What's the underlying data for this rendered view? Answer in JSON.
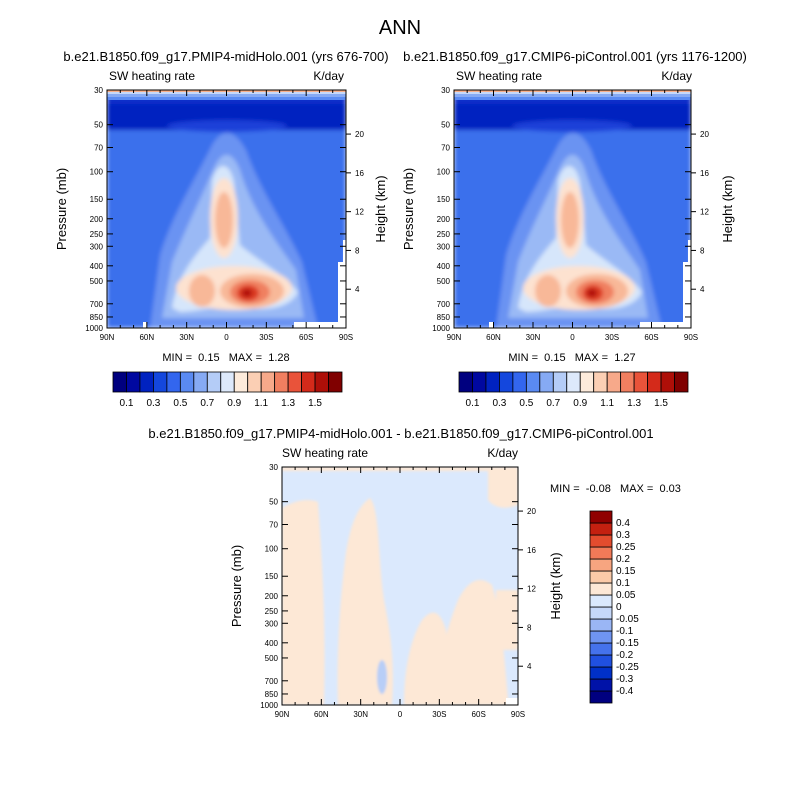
{
  "figure": {
    "title": "ANN"
  },
  "chart_data": [
    {
      "type": "heatmap",
      "title": "b.e21.B1850.f09_g17.PMIP4-midHolo.001 (yrs 676-700)",
      "left_label": "SW heating rate",
      "right_label": "K/day",
      "ylabel": "Pressure (mb)",
      "ylabel_right": "Height (km)",
      "xticks": [
        "90N",
        "60N",
        "30N",
        "0",
        "30S",
        "60S",
        "90S"
      ],
      "yticks": [
        30,
        50,
        70,
        100,
        150,
        200,
        250,
        300,
        400,
        500,
        700,
        850,
        1000
      ],
      "height_ticks": [
        20,
        16,
        12,
        8,
        4
      ],
      "ylim": [
        1000,
        30
      ],
      "y_log_scale": true,
      "stats": {
        "min_label": "MIN =",
        "min": "0.15",
        "max_label": "MAX =",
        "max": "1.28"
      }
    },
    {
      "type": "heatmap",
      "title": "b.e21.B1850.f09_g17.CMIP6-piControl.001 (yrs 1176-1200)",
      "left_label": "SW heating rate",
      "right_label": "K/day",
      "ylabel": "Pressure (mb)",
      "ylabel_right": "Height (km)",
      "xticks": [
        "90N",
        "60N",
        "30N",
        "0",
        "30S",
        "60S",
        "90S"
      ],
      "yticks": [
        30,
        50,
        70,
        100,
        150,
        200,
        250,
        300,
        400,
        500,
        700,
        850,
        1000
      ],
      "height_ticks": [
        20,
        16,
        12,
        8,
        4
      ],
      "ylim": [
        1000,
        30
      ],
      "y_log_scale": true,
      "stats": {
        "min_label": "MIN =",
        "min": "0.15",
        "max_label": "MAX =",
        "max": "1.27"
      }
    },
    {
      "type": "heatmap",
      "title": "b.e21.B1850.f09_g17.PMIP4-midHolo.001 - b.e21.B1850.f09_g17.CMIP6-piControl.001",
      "left_label": "SW heating rate",
      "right_label": "K/day",
      "ylabel": "Pressure (mb)",
      "ylabel_right": "Height (km)",
      "xticks": [
        "90N",
        "60N",
        "30N",
        "0",
        "30S",
        "60S",
        "90S"
      ],
      "yticks": [
        30,
        50,
        70,
        100,
        150,
        200,
        250,
        300,
        400,
        500,
        700,
        850,
        1000
      ],
      "height_ticks": [
        20,
        16,
        12,
        8,
        4
      ],
      "ylim": [
        1000,
        30
      ],
      "y_log_scale": true,
      "stats": {
        "min_label": "MIN =",
        "min": "-0.08",
        "max_label": "MAX =",
        "max": "0.03"
      }
    }
  ],
  "colorbars": {
    "abs": {
      "colors": [
        "#00007f",
        "#0008a0",
        "#0022c0",
        "#1447dd",
        "#3366ee",
        "#5a8af2",
        "#86aaf4",
        "#b4ccf7",
        "#dde9fb",
        "#fdebdb",
        "#fbcfb4",
        "#f7a98a",
        "#f17f60",
        "#e9533a",
        "#d42a1a",
        "#ae0f08",
        "#800000"
      ],
      "labels": [
        "0.1",
        "0.3",
        "0.5",
        "0.7",
        "0.9",
        "1.1",
        "1.3",
        "1.5"
      ]
    },
    "diff": {
      "colors": [
        "#000080",
        "#0012a8",
        "#0030c8",
        "#2050e0",
        "#4572ec",
        "#6f94f1",
        "#9ab6f5",
        "#c6d8f9",
        "#dbe9fd",
        "#fde8d6",
        "#fbcaa8",
        "#f7a580",
        "#f17a58",
        "#e34c2e",
        "#c42010",
        "#900000"
      ],
      "labels": [
        "0.4",
        "0.3",
        "0.25",
        "0.2",
        "0.15",
        "0.1",
        "0.05",
        "0",
        "-0.05",
        "-0.1",
        "-0.15",
        "-0.2",
        "-0.25",
        "-0.3",
        "-0.4"
      ]
    }
  }
}
